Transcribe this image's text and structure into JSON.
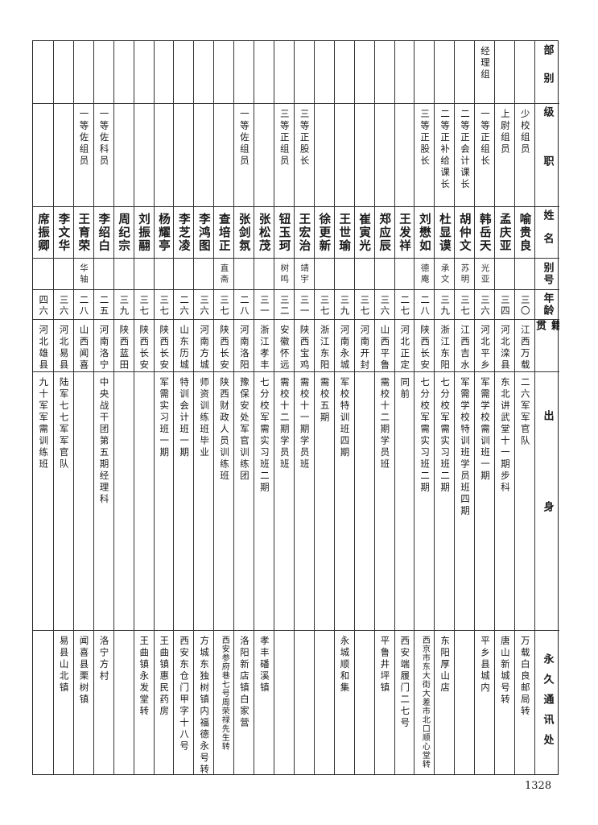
{
  "headers": {
    "department": "部别",
    "rank": "级职",
    "name": "姓名",
    "alias": "别号",
    "age": "年龄",
    "native_place": "籍贯",
    "background": "出身",
    "address": "永久通讯处"
  },
  "rows": [
    {
      "department": "",
      "rank": "少校组员",
      "name": "喻贵良",
      "alias": "",
      "age": "三〇",
      "native_place": "江西万载",
      "background": "二六军军官队",
      "address": "万载白良邮局转"
    },
    {
      "department": "",
      "rank": "上尉组员",
      "name": "孟庆亚",
      "alias": "",
      "age": "三四",
      "native_place": "河北滦县",
      "background": "东北讲武堂十一期步科",
      "address": "唐山新城号转"
    },
    {
      "department": "经理组",
      "rank": "一等正组长",
      "name": "韩岳天",
      "alias": "光亚",
      "age": "三六",
      "native_place": "河北平乡",
      "background": "军需学校需训班一期",
      "address": "平乡县城内"
    },
    {
      "department": "",
      "rank": "二等正会计课长",
      "name": "胡仲文",
      "alias": "苏明",
      "age": "三七",
      "native_place": "江西吉水",
      "background": "军需学校特训班学员班四期",
      "address": ""
    },
    {
      "department": "",
      "rank": "二等正补给课长",
      "name": "杜显谟",
      "alias": "承文",
      "age": "三九",
      "native_place": "浙江东阳",
      "background": "七分校军需实习班二期",
      "address": "东阳厚山店"
    },
    {
      "department": "",
      "rank": "三等正股长",
      "name": "刘懋如",
      "alias": "德庵",
      "age": "二八",
      "native_place": "陕西长安",
      "background": "七分校军需实习班二期",
      "address": "西京市东大街大差市北口顺心堂转"
    },
    {
      "department": "",
      "rank": "",
      "name": "王发祥",
      "alias": "",
      "age": "二七",
      "native_place": "河北正定",
      "background": "同前",
      "address": "西安端履门二七号"
    },
    {
      "department": "",
      "rank": "",
      "name": "郑应辰",
      "alias": "",
      "age": "三六",
      "native_place": "山西平鲁",
      "background": "需校十二期学员班",
      "address": "平鲁井坪镇"
    },
    {
      "department": "",
      "rank": "",
      "name": "崔寅光",
      "alias": "",
      "age": "三七",
      "native_place": "河南开封",
      "background": "",
      "address": ""
    },
    {
      "department": "",
      "rank": "",
      "name": "王世瑜",
      "alias": "",
      "age": "三九",
      "native_place": "河南永城",
      "background": "军校特训班四期",
      "address": "永城顺和集"
    },
    {
      "department": "",
      "rank": "",
      "name": "徐更新",
      "alias": "",
      "age": "三七",
      "native_place": "浙江东阳",
      "background": "需校五期",
      "address": ""
    },
    {
      "department": "",
      "rank": "三等正股长",
      "name": "王宏治",
      "alias": "靖宇",
      "age": "三一",
      "native_place": "陕西宝鸡",
      "background": "需校十一期学员班",
      "address": ""
    },
    {
      "department": "",
      "rank": "三等正组员",
      "name": "钮玉珂",
      "alias": "树鸣",
      "age": "三二",
      "native_place": "安徽怀远",
      "background": "需校十二期学员班",
      "address": ""
    },
    {
      "department": "",
      "rank": "",
      "name": "张松茂",
      "alias": "",
      "age": "三一",
      "native_place": "浙江孝丰",
      "background": "七分校军需实习班二期",
      "address": "孝丰磻溪镇"
    },
    {
      "department": "",
      "rank": "一等佐组员",
      "name": "张剑氛",
      "alias": "",
      "age": "二八",
      "native_place": "河南洛阳",
      "background": "豫保安处军官训练团",
      "address": "洛阳新店镇白家营"
    },
    {
      "department": "",
      "rank": "",
      "name": "查培正",
      "alias": "直斋",
      "age": "三七",
      "native_place": "陕西长安",
      "background": "陕西财政人员训练班",
      "address": "西安参府巷七号周荣禄先生转"
    },
    {
      "department": "",
      "rank": "",
      "name": "李鸿图",
      "alias": "",
      "age": "三六",
      "native_place": "河南方城",
      "background": "师资训练班毕业",
      "address": "方城东独树镇内福德永号转"
    },
    {
      "department": "",
      "rank": "",
      "name": "李芝凌",
      "alias": "",
      "age": "二六",
      "native_place": "山东历城",
      "background": "特训会计班一期",
      "address": "西安东仓门甲字十八号"
    },
    {
      "department": "",
      "rank": "",
      "name": "杨耀亭",
      "alias": "",
      "age": "三七",
      "native_place": "陕西长安",
      "background": "军需实习班一期",
      "address": "王曲镇惠民药房"
    },
    {
      "department": "",
      "rank": "",
      "name": "刘振翮",
      "alias": "",
      "age": "三七",
      "native_place": "陕西长安",
      "background": "",
      "address": "王曲镇永发堂转"
    },
    {
      "department": "",
      "rank": "",
      "name": "周纪宗",
      "alias": "",
      "age": "三九",
      "native_place": "陕西蓝田",
      "background": "",
      "address": ""
    },
    {
      "department": "",
      "rank": "一等佐科员",
      "name": "李绍白",
      "alias": "",
      "age": "二五",
      "native_place": "河南洛宁",
      "background": "中央战干团第五期经理科",
      "address": "洛宁方村"
    },
    {
      "department": "",
      "rank": "一等佐组员",
      "name": "王育荣",
      "alias": "华轴",
      "age": "二八",
      "native_place": "山西闻喜",
      "background": "",
      "address": "闻喜县栗树镇"
    },
    {
      "department": "",
      "rank": "",
      "name": "李文华",
      "alias": "",
      "age": "三六",
      "native_place": "河北易县",
      "background": "陆军七七军军官队",
      "address": "易县山北镇"
    },
    {
      "department": "",
      "rank": "",
      "name": "席振卿",
      "alias": "",
      "age": "四六",
      "native_place": "河北雄县",
      "background": "九十军军需训练班",
      "address": ""
    }
  ],
  "page_number": "1328"
}
